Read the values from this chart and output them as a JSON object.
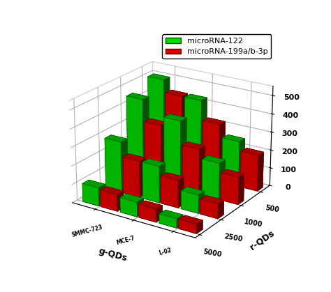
{
  "legend_labels": [
    "microRNA-122",
    "microRNA-199a/b-3p"
  ],
  "legend_colors": [
    "#00DD00",
    "#DD0000"
  ],
  "z_tick_values": [
    0,
    100,
    200,
    300,
    400,
    500
  ],
  "x_axis_label": "g-QDs",
  "y_axis_label": "r-QDs",
  "cell_labels": [
    "SMMC-723",
    "MCE-7",
    "L-02"
  ],
  "conc_labels": [
    "5000",
    "2500",
    "1000",
    "500"
  ],
  "green_data": [
    [
      100,
      80,
      50
    ],
    [
      280,
      200,
      100
    ],
    [
      450,
      380,
      200
    ],
    [
      500,
      430,
      250
    ]
  ],
  "red_data": [
    [
      90,
      70,
      50
    ],
    [
      200,
      150,
      80
    ],
    [
      330,
      250,
      150
    ],
    [
      430,
      320,
      200
    ]
  ],
  "bar_color_green": "#00CC00",
  "bar_color_red": "#DD0000",
  "bar_width": 0.28,
  "bar_depth": 0.28,
  "zlim": [
    0,
    550
  ],
  "elev": 22,
  "azim": -57,
  "background_color": "#ffffff"
}
